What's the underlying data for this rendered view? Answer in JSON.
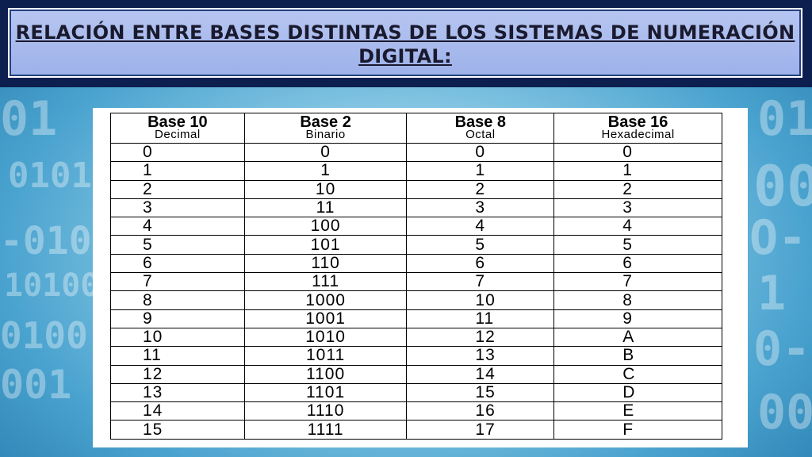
{
  "title": "Relación entre bases distintas de los sistemas de numeración digital:",
  "table": {
    "headers": [
      {
        "main": "Base 10",
        "sub": "Decimal"
      },
      {
        "main": "Base 2",
        "sub": "Binario"
      },
      {
        "main": "Base 8",
        "sub": "Octal"
      },
      {
        "main": "Base 16",
        "sub": "Hexadecimal"
      }
    ],
    "rows": [
      [
        "0",
        "0",
        "0",
        "0"
      ],
      [
        "1",
        "1",
        "1",
        "1"
      ],
      [
        "2",
        "10",
        "2",
        "2"
      ],
      [
        "3",
        "11",
        "3",
        "3"
      ],
      [
        "4",
        "100",
        "4",
        "4"
      ],
      [
        "5",
        "101",
        "5",
        "5"
      ],
      [
        "6",
        "110",
        "6",
        "6"
      ],
      [
        "7",
        "111",
        "7",
        "7"
      ],
      [
        "8",
        "1000",
        "10",
        "8"
      ],
      [
        "9",
        "1001",
        "11",
        "9"
      ],
      [
        "10",
        "1010",
        "12",
        "A"
      ],
      [
        "11",
        "1011",
        "13",
        "B"
      ],
      [
        "12",
        "1100",
        "14",
        "C"
      ],
      [
        "13",
        "1101",
        "15",
        "D"
      ],
      [
        "14",
        "1110",
        "16",
        "E"
      ],
      [
        "15",
        "1111",
        "17",
        "F"
      ]
    ]
  }
}
